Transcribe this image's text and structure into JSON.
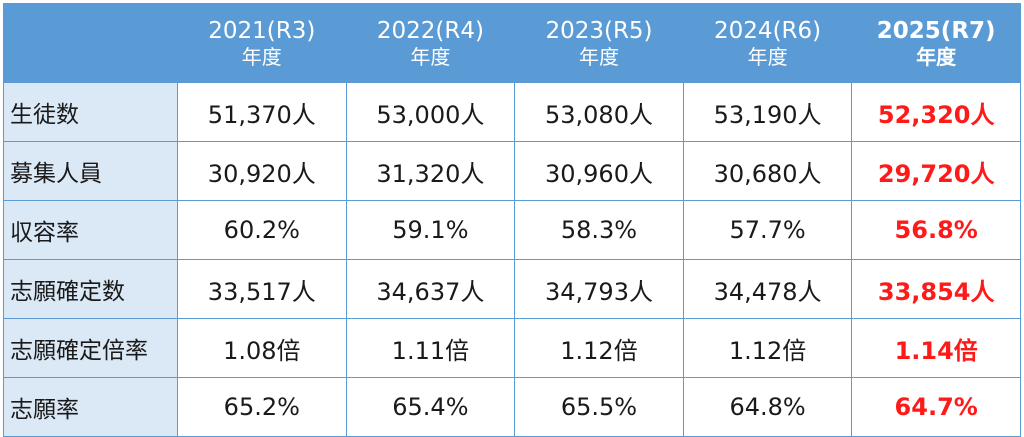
{
  "chart_data": {
    "type": "table",
    "columns": [
      {
        "year": "2021(R3)",
        "unit": "年度"
      },
      {
        "year": "2022(R4)",
        "unit": "年度"
      },
      {
        "year": "2023(R5)",
        "unit": "年度"
      },
      {
        "year": "2024(R6)",
        "unit": "年度"
      },
      {
        "year": "2025(R7)",
        "unit": "年度"
      }
    ],
    "rows": [
      {
        "label": "生徒数",
        "values": [
          "51,370人",
          "53,000人",
          "53,080人",
          "53,190人",
          "52,320人"
        ]
      },
      {
        "label": "募集人員",
        "values": [
          "30,920人",
          "31,320人",
          "30,960人",
          "30,680人",
          "29,720人"
        ]
      },
      {
        "label": "収容率",
        "values": [
          "60.2%",
          "59.1%",
          "58.3%",
          "57.7%",
          "56.8%"
        ]
      },
      {
        "label": "志願確定数",
        "values": [
          "33,517人",
          "34,637人",
          "34,793人",
          "34,478人",
          "33,854人"
        ]
      },
      {
        "label": "志願確定倍率",
        "values": [
          "1.08倍",
          "1.11倍",
          "1.12倍",
          "1.12倍",
          "1.14倍"
        ]
      },
      {
        "label": "志願率",
        "values": [
          "65.2%",
          "65.4%",
          "65.5%",
          "64.8%",
          "64.7%"
        ]
      }
    ],
    "colors": {
      "header_bg": "#5b9bd5",
      "header_text": "#ffffff",
      "label_bg": "#dbe8f5",
      "border": "#5b9bd5",
      "highlight": "#ff1a1a"
    },
    "highlight_column": 4
  }
}
